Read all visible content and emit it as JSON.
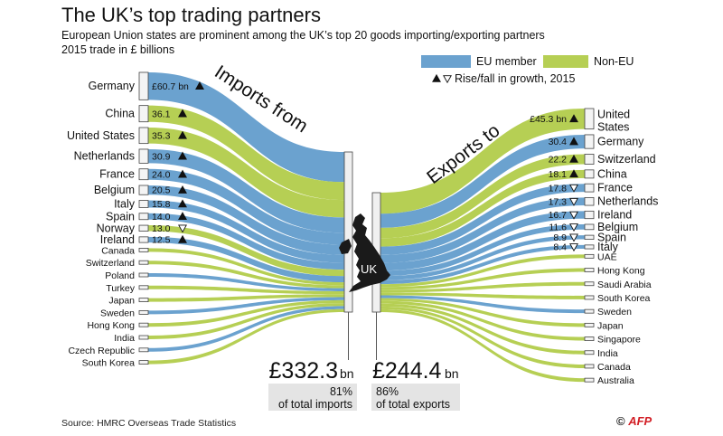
{
  "title": "The UK’s top trading partners",
  "subtitle": "European Union states are prominent among the UK’s top 20 goods importing/exporting partners",
  "unit_note": "2015 trade in £ billions",
  "source": "Source: HMRC Overseas Trade Statistics",
  "credit": {
    "symbol": "©",
    "agency": "AFP"
  },
  "legend": {
    "eu": "EU member",
    "non_eu": "Non-EU",
    "trend_note": "Rise/fall in growth, 2015"
  },
  "flow_labels": {
    "imports": "Imports from",
    "exports": "Exports to",
    "uk": "UK"
  },
  "totals": {
    "imports_value": "£332.3",
    "imports_unit": "bn",
    "imports_share": "81%",
    "imports_share_text": "of total imports",
    "exports_value": "£244.4",
    "exports_unit": "bn",
    "exports_share": "86%",
    "exports_share_text": "of total exports"
  },
  "colors": {
    "eu": "#6ba2cf",
    "non_eu": "#b6cf54",
    "bar_fill": "#eeeeee",
    "box_fill": "#e4e4e4",
    "text": "#111111"
  },
  "chart_data": {
    "type": "sankey",
    "unit": "£ billions",
    "imports": [
      {
        "country": "Germany",
        "value": 60.7,
        "label": "£60.7 bn",
        "eu": true,
        "trend": "rise"
      },
      {
        "country": "China",
        "value": 36.1,
        "label": "36.1",
        "eu": false,
        "trend": "rise"
      },
      {
        "country": "United States",
        "value": 35.3,
        "label": "35.3",
        "eu": false,
        "trend": "rise"
      },
      {
        "country": "Netherlands",
        "value": 30.9,
        "label": "30.9",
        "eu": true,
        "trend": "rise"
      },
      {
        "country": "France",
        "value": 24.0,
        "label": "24.0",
        "eu": true,
        "trend": "rise"
      },
      {
        "country": "Belgium",
        "value": 20.5,
        "label": "20.5",
        "eu": true,
        "trend": "rise"
      },
      {
        "country": "Italy",
        "value": 15.8,
        "label": "15.8",
        "eu": true,
        "trend": "rise"
      },
      {
        "country": "Spain",
        "value": 14.0,
        "label": "14.0",
        "eu": true,
        "trend": "rise"
      },
      {
        "country": "Norway",
        "value": 13.0,
        "label": "13.0",
        "eu": false,
        "trend": "fall"
      },
      {
        "country": "Ireland",
        "value": 12.5,
        "label": "12.5",
        "eu": true,
        "trend": "rise"
      },
      {
        "country": "Canada",
        "eu": false
      },
      {
        "country": "Switzerland",
        "eu": false
      },
      {
        "country": "Poland",
        "eu": true
      },
      {
        "country": "Turkey",
        "eu": false
      },
      {
        "country": "Japan",
        "eu": false
      },
      {
        "country": "Sweden",
        "eu": true
      },
      {
        "country": "Hong Kong",
        "eu": false
      },
      {
        "country": "India",
        "eu": false
      },
      {
        "country": "Czech Republic",
        "eu": true
      },
      {
        "country": "South Korea",
        "eu": false
      }
    ],
    "exports": [
      {
        "country": "United States",
        "value": 45.3,
        "label": "£45.3 bn",
        "eu": false,
        "trend": "rise"
      },
      {
        "country": "Germany",
        "value": 30.4,
        "label": "30.4",
        "eu": true,
        "trend": "rise"
      },
      {
        "country": "Switzerland",
        "value": 22.2,
        "label": "22.2",
        "eu": false,
        "trend": "rise"
      },
      {
        "country": "China",
        "value": 18.1,
        "label": "18.1",
        "eu": false,
        "trend": "rise"
      },
      {
        "country": "France",
        "value": 17.8,
        "label": "17.8",
        "eu": true,
        "trend": "fall"
      },
      {
        "country": "Netherlands",
        "value": 17.3,
        "label": "17.3",
        "eu": true,
        "trend": "fall"
      },
      {
        "country": "Ireland",
        "value": 16.7,
        "label": "16.7",
        "eu": true,
        "trend": "fall"
      },
      {
        "country": "Belgium",
        "value": 11.6,
        "label": "11.6",
        "eu": true,
        "trend": "fall"
      },
      {
        "country": "Spain",
        "value": 8.9,
        "label": "8.9",
        "eu": true,
        "trend": "fall"
      },
      {
        "country": "Italy",
        "value": 8.4,
        "label": "8.4",
        "eu": true,
        "trend": "fall"
      },
      {
        "country": "UAE",
        "eu": false
      },
      {
        "country": "Hong Kong",
        "eu": false
      },
      {
        "country": "Saudi Arabia",
        "eu": false
      },
      {
        "country": "South Korea",
        "eu": false
      },
      {
        "country": "Sweden",
        "eu": true
      },
      {
        "country": "Japan",
        "eu": false
      },
      {
        "country": "Singapore",
        "eu": false
      },
      {
        "country": "India",
        "eu": false
      },
      {
        "country": "Canada",
        "eu": false
      },
      {
        "country": "Australia",
        "eu": false
      }
    ]
  }
}
